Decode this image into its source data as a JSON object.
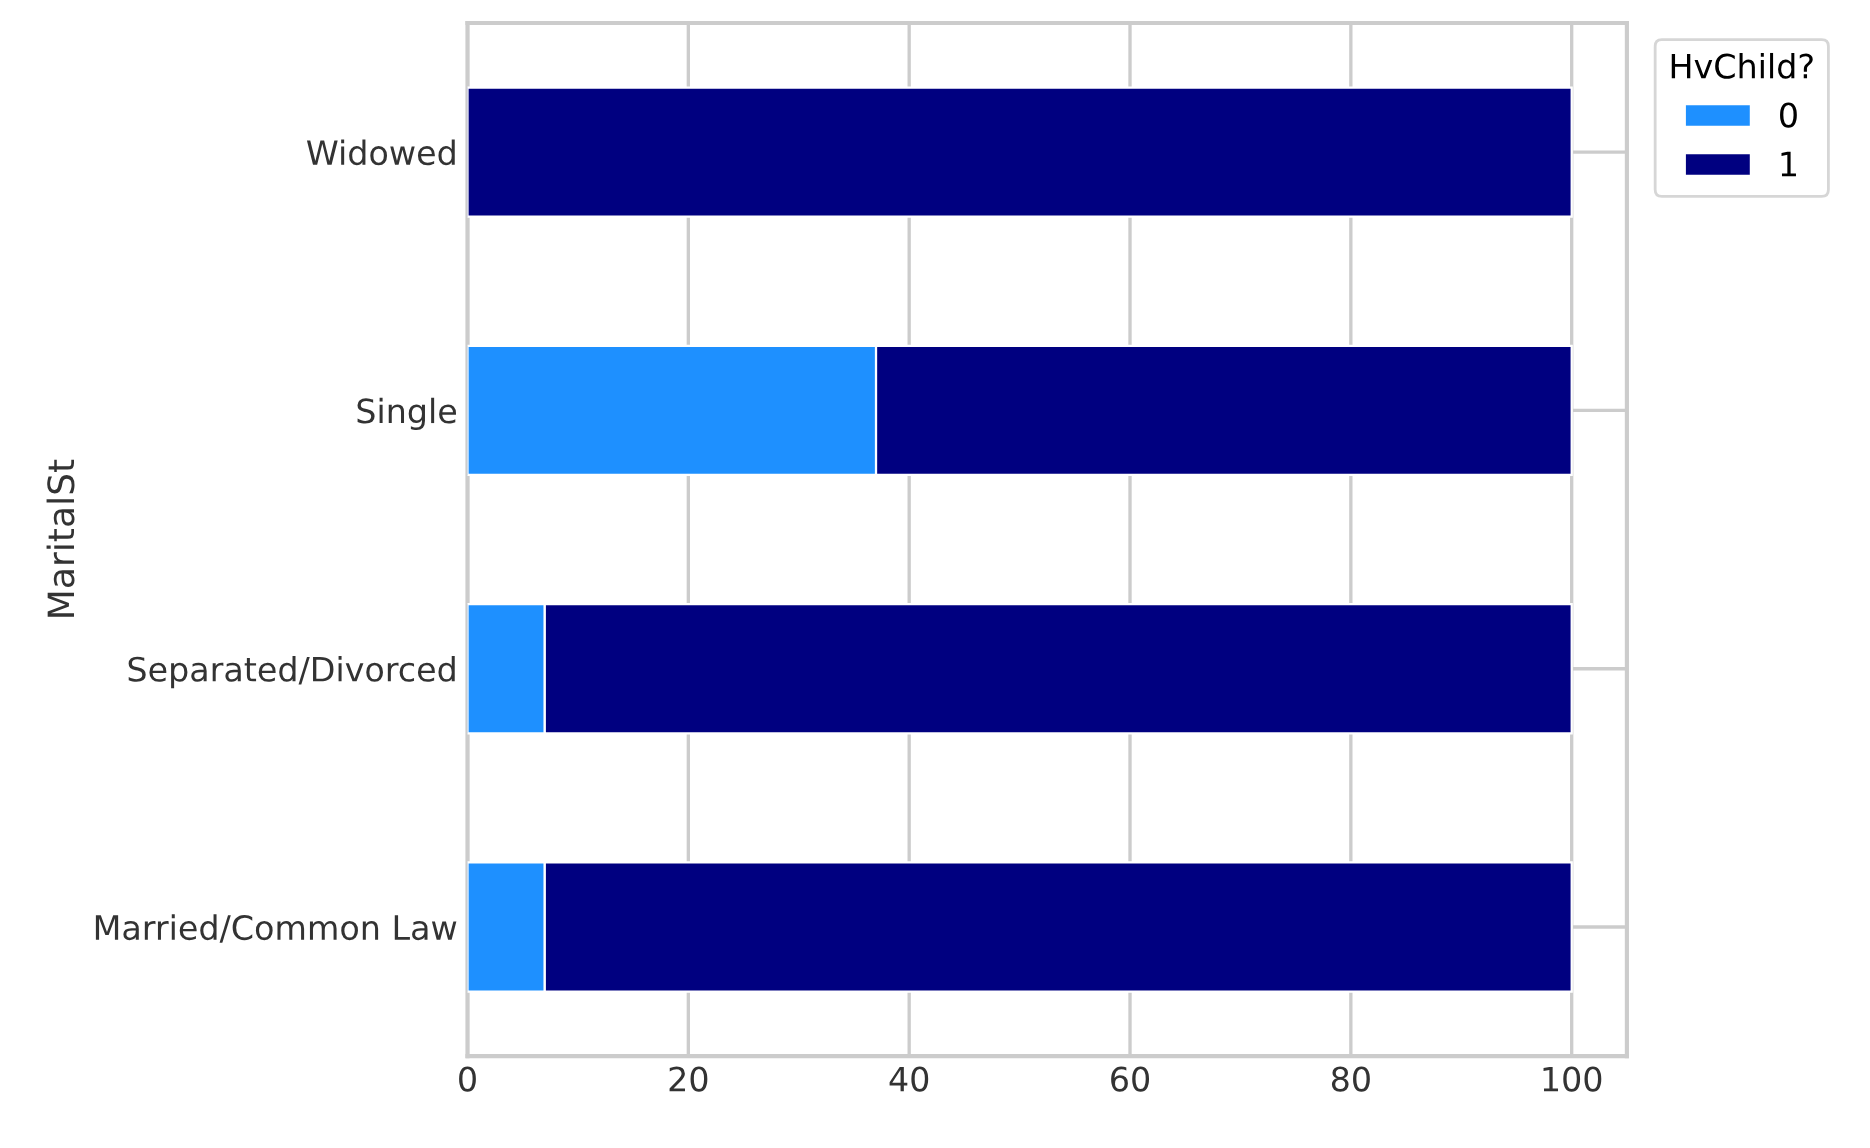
{
  "chart_data": {
    "type": "bar",
    "orientation": "horizontal",
    "stacked": true,
    "ylabel": "MaritalSt",
    "legend_title": "HvChild?",
    "categories": [
      "Widowed",
      "Single",
      "Separated/Divorced",
      "Married/Common Law"
    ],
    "series": [
      {
        "name": "0",
        "color": "#1e90ff",
        "values": [
          0,
          37,
          7,
          7
        ]
      },
      {
        "name": "1",
        "color": "#000080",
        "values": [
          100,
          63,
          93,
          93
        ]
      }
    ],
    "xlim": [
      0,
      105
    ],
    "xticks": [
      0,
      20,
      40,
      60,
      80,
      100
    ],
    "grid": true,
    "legend": "top right"
  }
}
